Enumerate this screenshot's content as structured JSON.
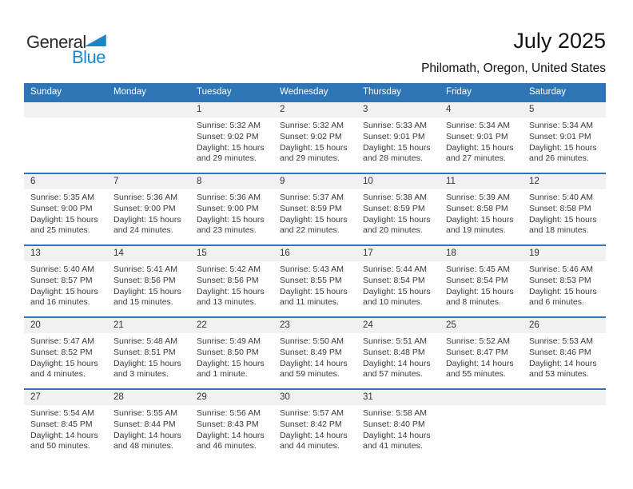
{
  "logo": {
    "line1": "General",
    "line2": "Blue"
  },
  "header": {
    "title": "July 2025",
    "subtitle": "Philomath, Oregon, United States"
  },
  "colors": {
    "header_blue": "#2E75B6",
    "stripe_gray": "#F1F1F1",
    "logo_blue": "#1C86C9"
  },
  "calendar": {
    "weekdays": [
      "Sunday",
      "Monday",
      "Tuesday",
      "Wednesday",
      "Thursday",
      "Friday",
      "Saturday"
    ],
    "labels": {
      "sunrise": "Sunrise:",
      "sunset": "Sunset:",
      "daylight": "Daylight:"
    },
    "weeks": [
      [
        null,
        null,
        {
          "day": "1",
          "sunrise": "5:32 AM",
          "sunset": "9:02 PM",
          "daylight": "15 hours and 29 minutes."
        },
        {
          "day": "2",
          "sunrise": "5:32 AM",
          "sunset": "9:02 PM",
          "daylight": "15 hours and 29 minutes."
        },
        {
          "day": "3",
          "sunrise": "5:33 AM",
          "sunset": "9:01 PM",
          "daylight": "15 hours and 28 minutes."
        },
        {
          "day": "4",
          "sunrise": "5:34 AM",
          "sunset": "9:01 PM",
          "daylight": "15 hours and 27 minutes."
        },
        {
          "day": "5",
          "sunrise": "5:34 AM",
          "sunset": "9:01 PM",
          "daylight": "15 hours and 26 minutes."
        }
      ],
      [
        {
          "day": "6",
          "sunrise": "5:35 AM",
          "sunset": "9:00 PM",
          "daylight": "15 hours and 25 minutes."
        },
        {
          "day": "7",
          "sunrise": "5:36 AM",
          "sunset": "9:00 PM",
          "daylight": "15 hours and 24 minutes."
        },
        {
          "day": "8",
          "sunrise": "5:36 AM",
          "sunset": "9:00 PM",
          "daylight": "15 hours and 23 minutes."
        },
        {
          "day": "9",
          "sunrise": "5:37 AM",
          "sunset": "8:59 PM",
          "daylight": "15 hours and 22 minutes."
        },
        {
          "day": "10",
          "sunrise": "5:38 AM",
          "sunset": "8:59 PM",
          "daylight": "15 hours and 20 minutes."
        },
        {
          "day": "11",
          "sunrise": "5:39 AM",
          "sunset": "8:58 PM",
          "daylight": "15 hours and 19 minutes."
        },
        {
          "day": "12",
          "sunrise": "5:40 AM",
          "sunset": "8:58 PM",
          "daylight": "15 hours and 18 minutes."
        }
      ],
      [
        {
          "day": "13",
          "sunrise": "5:40 AM",
          "sunset": "8:57 PM",
          "daylight": "15 hours and 16 minutes."
        },
        {
          "day": "14",
          "sunrise": "5:41 AM",
          "sunset": "8:56 PM",
          "daylight": "15 hours and 15 minutes."
        },
        {
          "day": "15",
          "sunrise": "5:42 AM",
          "sunset": "8:56 PM",
          "daylight": "15 hours and 13 minutes."
        },
        {
          "day": "16",
          "sunrise": "5:43 AM",
          "sunset": "8:55 PM",
          "daylight": "15 hours and 11 minutes."
        },
        {
          "day": "17",
          "sunrise": "5:44 AM",
          "sunset": "8:54 PM",
          "daylight": "15 hours and 10 minutes."
        },
        {
          "day": "18",
          "sunrise": "5:45 AM",
          "sunset": "8:54 PM",
          "daylight": "15 hours and 8 minutes."
        },
        {
          "day": "19",
          "sunrise": "5:46 AM",
          "sunset": "8:53 PM",
          "daylight": "15 hours and 6 minutes."
        }
      ],
      [
        {
          "day": "20",
          "sunrise": "5:47 AM",
          "sunset": "8:52 PM",
          "daylight": "15 hours and 4 minutes."
        },
        {
          "day": "21",
          "sunrise": "5:48 AM",
          "sunset": "8:51 PM",
          "daylight": "15 hours and 3 minutes."
        },
        {
          "day": "22",
          "sunrise": "5:49 AM",
          "sunset": "8:50 PM",
          "daylight": "15 hours and 1 minute."
        },
        {
          "day": "23",
          "sunrise": "5:50 AM",
          "sunset": "8:49 PM",
          "daylight": "14 hours and 59 minutes."
        },
        {
          "day": "24",
          "sunrise": "5:51 AM",
          "sunset": "8:48 PM",
          "daylight": "14 hours and 57 minutes."
        },
        {
          "day": "25",
          "sunrise": "5:52 AM",
          "sunset": "8:47 PM",
          "daylight": "14 hours and 55 minutes."
        },
        {
          "day": "26",
          "sunrise": "5:53 AM",
          "sunset": "8:46 PM",
          "daylight": "14 hours and 53 minutes."
        }
      ],
      [
        {
          "day": "27",
          "sunrise": "5:54 AM",
          "sunset": "8:45 PM",
          "daylight": "14 hours and 50 minutes."
        },
        {
          "day": "28",
          "sunrise": "5:55 AM",
          "sunset": "8:44 PM",
          "daylight": "14 hours and 48 minutes."
        },
        {
          "day": "29",
          "sunrise": "5:56 AM",
          "sunset": "8:43 PM",
          "daylight": "14 hours and 46 minutes."
        },
        {
          "day": "30",
          "sunrise": "5:57 AM",
          "sunset": "8:42 PM",
          "daylight": "14 hours and 44 minutes."
        },
        {
          "day": "31",
          "sunrise": "5:58 AM",
          "sunset": "8:40 PM",
          "daylight": "14 hours and 41 minutes."
        },
        null,
        null
      ]
    ]
  }
}
